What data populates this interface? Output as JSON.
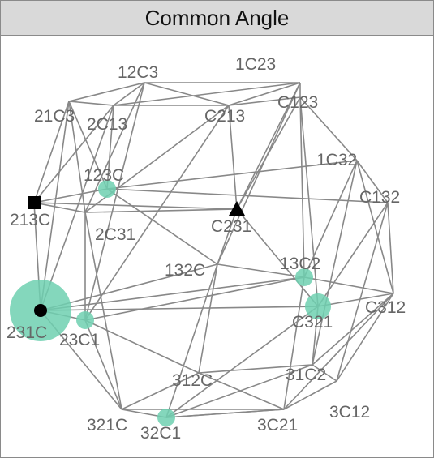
{
  "panel": {
    "title": "Common Angle"
  },
  "colors": {
    "edge": "#888888",
    "label": "#666666",
    "highlight": "#6fd0b0",
    "marker": "#000000"
  },
  "nodes": [
    {
      "id": "12C3",
      "label": "12C3"
    },
    {
      "id": "1C23",
      "label": "1C23"
    },
    {
      "id": "21C3",
      "label": "21C3"
    },
    {
      "id": "2C13",
      "label": "2C13"
    },
    {
      "id": "C213",
      "label": "C213"
    },
    {
      "id": "C123",
      "label": "C123"
    },
    {
      "id": "1C32",
      "label": "1C32"
    },
    {
      "id": "123C",
      "label": "123C"
    },
    {
      "id": "C132",
      "label": "C132"
    },
    {
      "id": "213C",
      "label": "213C"
    },
    {
      "id": "C231",
      "label": "C231"
    },
    {
      "id": "2C31",
      "label": "2C31"
    },
    {
      "id": "132C",
      "label": "132C"
    },
    {
      "id": "13C2",
      "label": "13C2"
    },
    {
      "id": "231C",
      "label": "231C"
    },
    {
      "id": "C321",
      "label": "C321"
    },
    {
      "id": "C312",
      "label": "C312"
    },
    {
      "id": "23C1",
      "label": "23C1"
    },
    {
      "id": "312C",
      "label": "312C"
    },
    {
      "id": "31C2",
      "label": "31C2"
    },
    {
      "id": "3C12",
      "label": "3C12"
    },
    {
      "id": "321C",
      "label": "321C"
    },
    {
      "id": "32C1",
      "label": "32C1"
    },
    {
      "id": "3C21",
      "label": "3C21"
    }
  ],
  "highlights": [
    {
      "node": "123C",
      "size": "small"
    },
    {
      "node": "13C2",
      "size": "small"
    },
    {
      "node": "C321",
      "size": "medium"
    },
    {
      "node": "23C1",
      "size": "small"
    },
    {
      "node": "32C1",
      "size": "small"
    },
    {
      "node": "231C",
      "size": "large"
    }
  ],
  "markers": [
    {
      "node": "213C",
      "shape": "square"
    },
    {
      "node": "C231",
      "shape": "triangle"
    },
    {
      "node": "231C",
      "shape": "circle"
    }
  ]
}
